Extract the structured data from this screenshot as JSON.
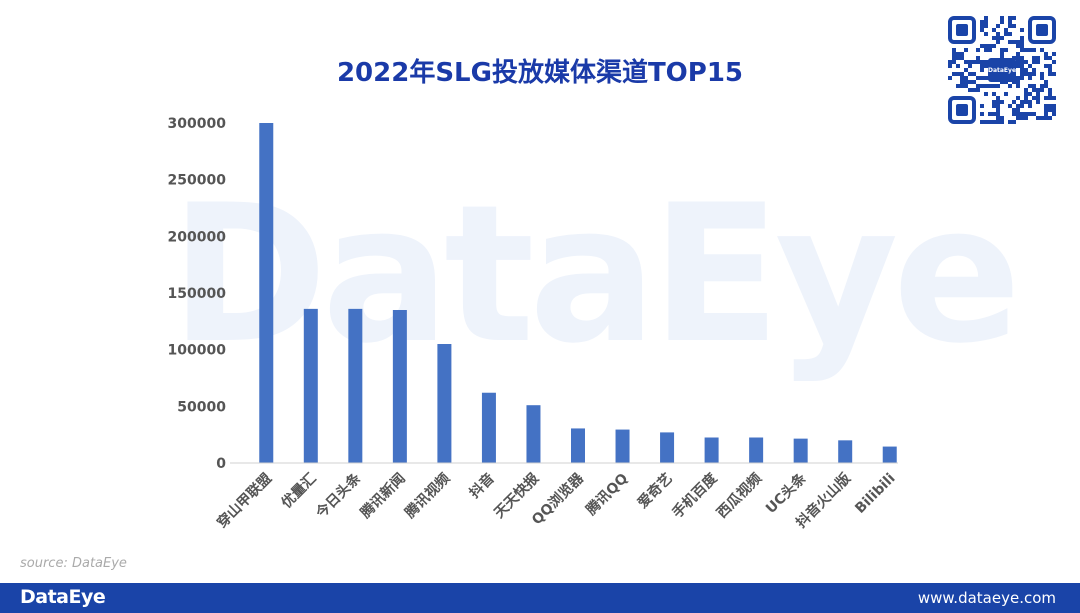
{
  "watermark": "DataEye",
  "footer": {
    "brand": "DataEye",
    "url": "www.dataeye.com"
  },
  "source_label": "source: DataEye",
  "qr": {
    "logo_text": "DataEye"
  },
  "colors": {
    "bar": "#4472c4",
    "title": "#1a3aa8",
    "footer": "#1a44a8"
  },
  "chart_data": {
    "type": "bar",
    "title": "2022年SLG投放媒体渠道TOP15",
    "xlabel": "",
    "ylabel": "",
    "ylim": [
      0,
      300000
    ],
    "yticks": [
      0,
      50000,
      100000,
      150000,
      200000,
      250000,
      300000
    ],
    "grid": false,
    "categories": [
      "穿山甲联盟",
      "优量汇",
      "今日头条",
      "腾讯新闻",
      "腾讯视频",
      "抖音",
      "天天快报",
      "QQ浏览器",
      "腾讯QQ",
      "爱奇艺",
      "手机百度",
      "西瓜视频",
      "UC头条",
      "抖音火山版",
      "Bilibili"
    ],
    "values": [
      300000,
      136000,
      136000,
      135000,
      105000,
      62000,
      51000,
      30500,
      29500,
      27000,
      22500,
      22500,
      21500,
      20000,
      14500
    ]
  }
}
